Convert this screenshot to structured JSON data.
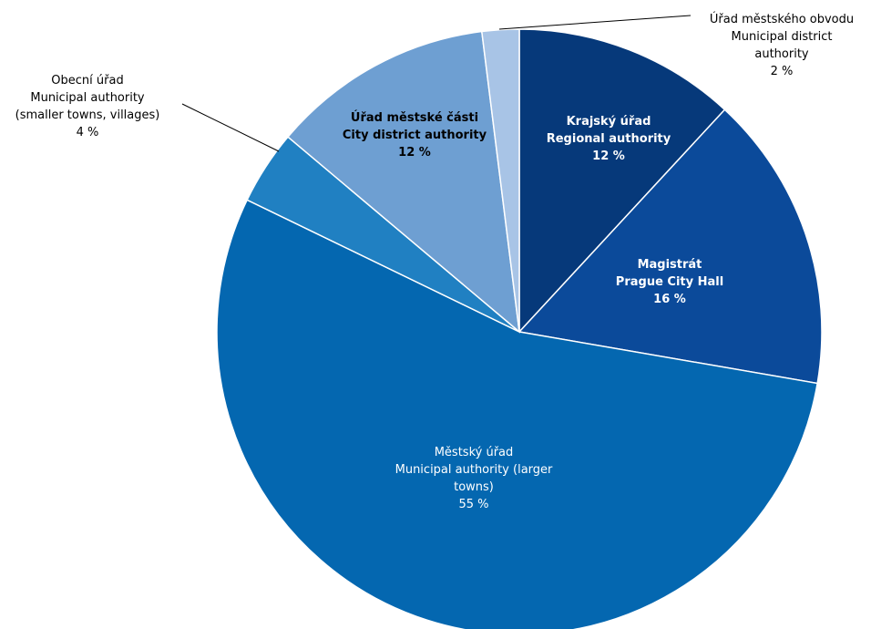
{
  "chart_data": {
    "type": "pie",
    "slices": [
      {
        "lines": [
          "Krajský úřad",
          "Regional authority"
        ],
        "value": 12,
        "value_label": "12 %",
        "color": "#06397A"
      },
      {
        "lines": [
          "Magistrát",
          "Prague City Hall"
        ],
        "value": 16,
        "value_label": "16 %",
        "color": "#0B4A9A"
      },
      {
        "lines": [
          "Městský úřad",
          "Municipal authority (larger",
          "towns)"
        ],
        "value": 55,
        "value_label": "55 %",
        "color": "#0467B0"
      },
      {
        "lines": [
          "Obecní úřad",
          "Municipal authority",
          "(smaller towns, villages)"
        ],
        "value": 4,
        "value_label": "4 %",
        "color": "#2080C2"
      },
      {
        "lines": [
          "Úřad městské části",
          "City district authority"
        ],
        "value": 12,
        "value_label": "12 %",
        "color": "#6E9FD2"
      },
      {
        "lines": [
          "Úřad městského obvodu",
          "Municipal district",
          "authority"
        ],
        "value": 2,
        "value_label": "2 %",
        "color": "#A8C4E6"
      }
    ]
  }
}
